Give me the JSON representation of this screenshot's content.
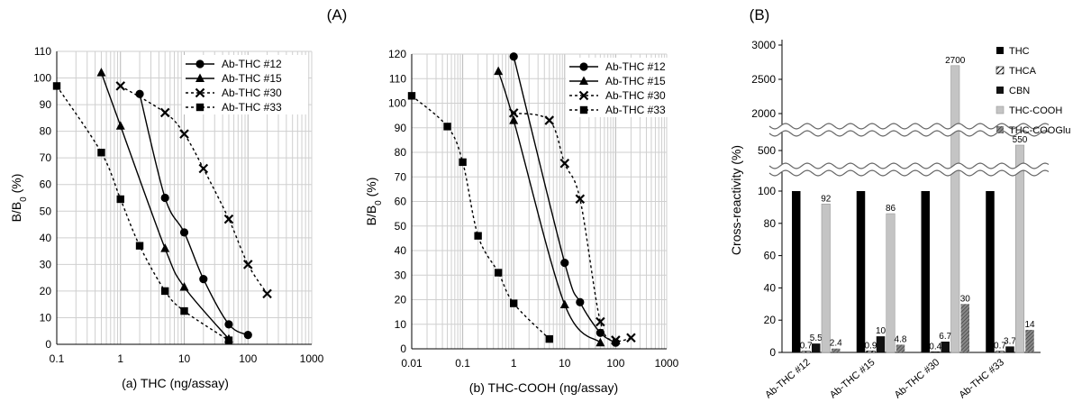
{
  "figure": {
    "panel_a_label": "(A)",
    "panel_b_label": "(B)"
  },
  "chart_data": [
    {
      "type": "line",
      "title": "(a)  THC    (ng/assay)",
      "xlabel": "(a)  THC    (ng/assay)",
      "ylabel": "B/B0 (%)",
      "xscale": "log",
      "xlim": [
        0.1,
        1000
      ],
      "ylim": [
        0,
        110
      ],
      "yticks": [
        0,
        10,
        20,
        30,
        40,
        50,
        60,
        70,
        80,
        90,
        100,
        110
      ],
      "xticks": [
        "0.1",
        "1",
        "10",
        "100",
        "1000"
      ],
      "legend_position": "top-right",
      "series": [
        {
          "name": "Ab-THC #12",
          "marker": "circle",
          "style": "solid",
          "x": [
            2,
            5,
            10,
            20,
            50,
            100
          ],
          "y": [
            94,
            55,
            42,
            24.5,
            7.5,
            3.5
          ]
        },
        {
          "name": "Ab-THC #15",
          "marker": "triangle",
          "style": "solid",
          "x": [
            0.5,
            1,
            5,
            10,
            50
          ],
          "y": [
            102,
            82,
            36,
            21.5,
            2
          ]
        },
        {
          "name": "Ab-THC #30",
          "marker": "cross",
          "style": "dotted",
          "x": [
            1,
            5,
            10,
            20,
            50,
            100,
            200
          ],
          "y": [
            97,
            87,
            79,
            66,
            47,
            30,
            19
          ]
        },
        {
          "name": "Ab-THC #33",
          "marker": "square",
          "style": "dotted",
          "x": [
            0.1,
            0.5,
            1,
            2,
            5,
            10,
            50
          ],
          "y": [
            97,
            72,
            54.5,
            37,
            20,
            12.5,
            1.5
          ]
        }
      ]
    },
    {
      "type": "line",
      "title": "(b)  THC-COOH (ng/assay)",
      "xlabel": "(b)  THC-COOH (ng/assay)",
      "ylabel": "B/B0 (%)",
      "xscale": "log",
      "xlim": [
        0.01,
        1000
      ],
      "ylim": [
        0,
        120
      ],
      "yticks": [
        0,
        10,
        20,
        30,
        40,
        50,
        60,
        70,
        80,
        90,
        100,
        110,
        120
      ],
      "xticks": [
        "0.01",
        "0.1",
        "1",
        "10",
        "100",
        "1000"
      ],
      "legend_position": "top-right",
      "series": [
        {
          "name": "Ab-THC #12",
          "marker": "circle",
          "style": "solid",
          "x": [
            1,
            10,
            20,
            50,
            100
          ],
          "y": [
            119,
            35,
            19,
            6.5,
            2.5
          ]
        },
        {
          "name": "Ab-THC #15",
          "marker": "triangle",
          "style": "solid",
          "x": [
            0.5,
            1,
            10,
            50
          ],
          "y": [
            113,
            93,
            18,
            2.5
          ]
        },
        {
          "name": "Ab-THC #30",
          "marker": "cross",
          "style": "dotted",
          "x": [
            1,
            5,
            10,
            20,
            50,
            100,
            200
          ],
          "y": [
            96,
            93,
            75.5,
            61,
            11,
            3.5,
            4.5
          ]
        },
        {
          "name": "Ab-THC #33",
          "marker": "square",
          "style": "dotted",
          "x": [
            0.01,
            0.05,
            0.1,
            0.2,
            0.5,
            1,
            5
          ],
          "y": [
            103,
            90.5,
            76,
            46,
            31,
            18.5,
            4
          ]
        }
      ]
    },
    {
      "type": "bar",
      "title": "",
      "xlabel": "",
      "ylabel": "Cross-reactivity (%)",
      "broken_axis": true,
      "yticks_lower": [
        "0",
        "20",
        "40",
        "60",
        "80",
        "100"
      ],
      "yticks_upper": [
        "500",
        "2000",
        "2500",
        "3000"
      ],
      "categories": [
        "Ab-THC #12",
        "Ab-THC #15",
        "Ab-THC #30",
        "Ab-THC #33"
      ],
      "legend_position": "top-right",
      "series": [
        {
          "name": "THC",
          "values": [
            100,
            100,
            100,
            100
          ],
          "labels": [
            "",
            "",
            "",
            ""
          ]
        },
        {
          "name": "THCA",
          "values": [
            0.7,
            0.9,
            0.4,
            0.7
          ],
          "labels": [
            "0.7",
            "0.9",
            "0.4",
            "0.7"
          ]
        },
        {
          "name": "CBN",
          "values": [
            5.5,
            10,
            6.7,
            3.7
          ],
          "labels": [
            "5.5",
            "10",
            "6.7",
            "3.7"
          ]
        },
        {
          "name": "THC-COOH",
          "values": [
            92,
            86,
            2700,
            550
          ],
          "labels": [
            "92",
            "86",
            "2700",
            "550"
          ]
        },
        {
          "name": "THC-COOGlu",
          "values": [
            2.4,
            4.8,
            30,
            14
          ],
          "labels": [
            "2.4",
            "4.8",
            "30",
            "14"
          ]
        }
      ]
    }
  ]
}
